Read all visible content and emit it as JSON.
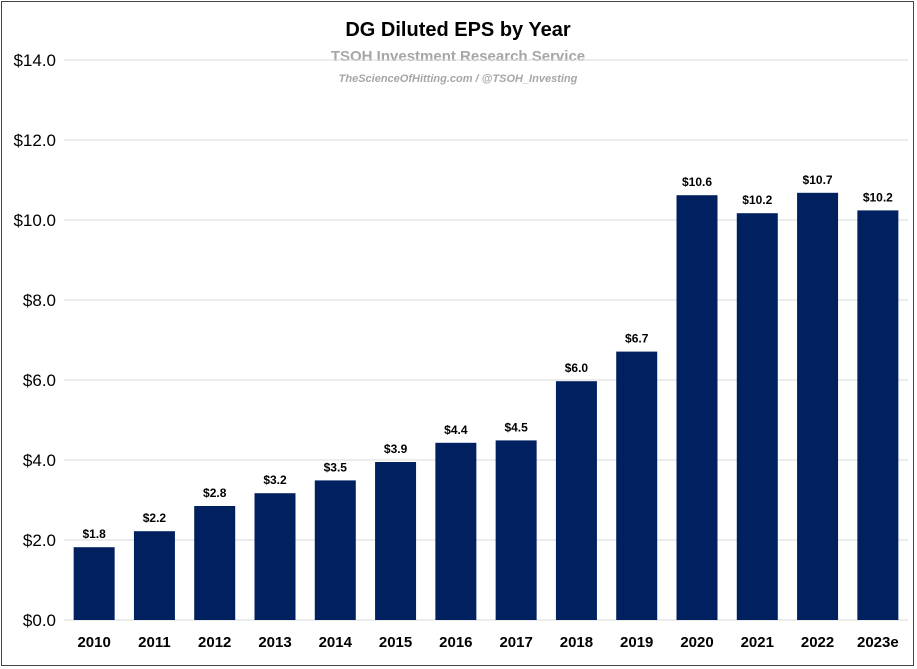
{
  "chart_data": {
    "type": "bar",
    "title": "DG Diluted EPS by Year",
    "subtitle": "TSOH Investment Research Service",
    "credit": "TheScienceOfHitting.com / @TSOH_Investing",
    "categories": [
      "2010",
      "2011",
      "2012",
      "2013",
      "2014",
      "2015",
      "2016",
      "2017",
      "2018",
      "2019",
      "2020",
      "2021",
      "2022",
      "2023e"
    ],
    "values": [
      1.82,
      2.22,
      2.85,
      3.17,
      3.49,
      3.95,
      4.43,
      4.49,
      5.97,
      6.71,
      10.62,
      10.17,
      10.68,
      10.24
    ],
    "data_labels": [
      "$1.8",
      "$2.2",
      "$2.8",
      "$3.2",
      "$3.5",
      "$3.9",
      "$4.4",
      "$4.5",
      "$6.0",
      "$6.7",
      "$10.6",
      "$10.2",
      "$10.7",
      "$10.2"
    ],
    "y_ticks": [
      0,
      2,
      4,
      6,
      8,
      10,
      12,
      14
    ],
    "y_tick_labels": [
      "$0.0",
      "$2.0",
      "$4.0",
      "$6.0",
      "$8.0",
      "$10.0",
      "$12.0",
      "$14.0"
    ],
    "ylim": [
      0,
      14
    ],
    "xlabel": "",
    "ylabel": "",
    "grid": true,
    "legend": "none",
    "bar_color": "#002060",
    "grid_color": "#d9d9d9"
  }
}
